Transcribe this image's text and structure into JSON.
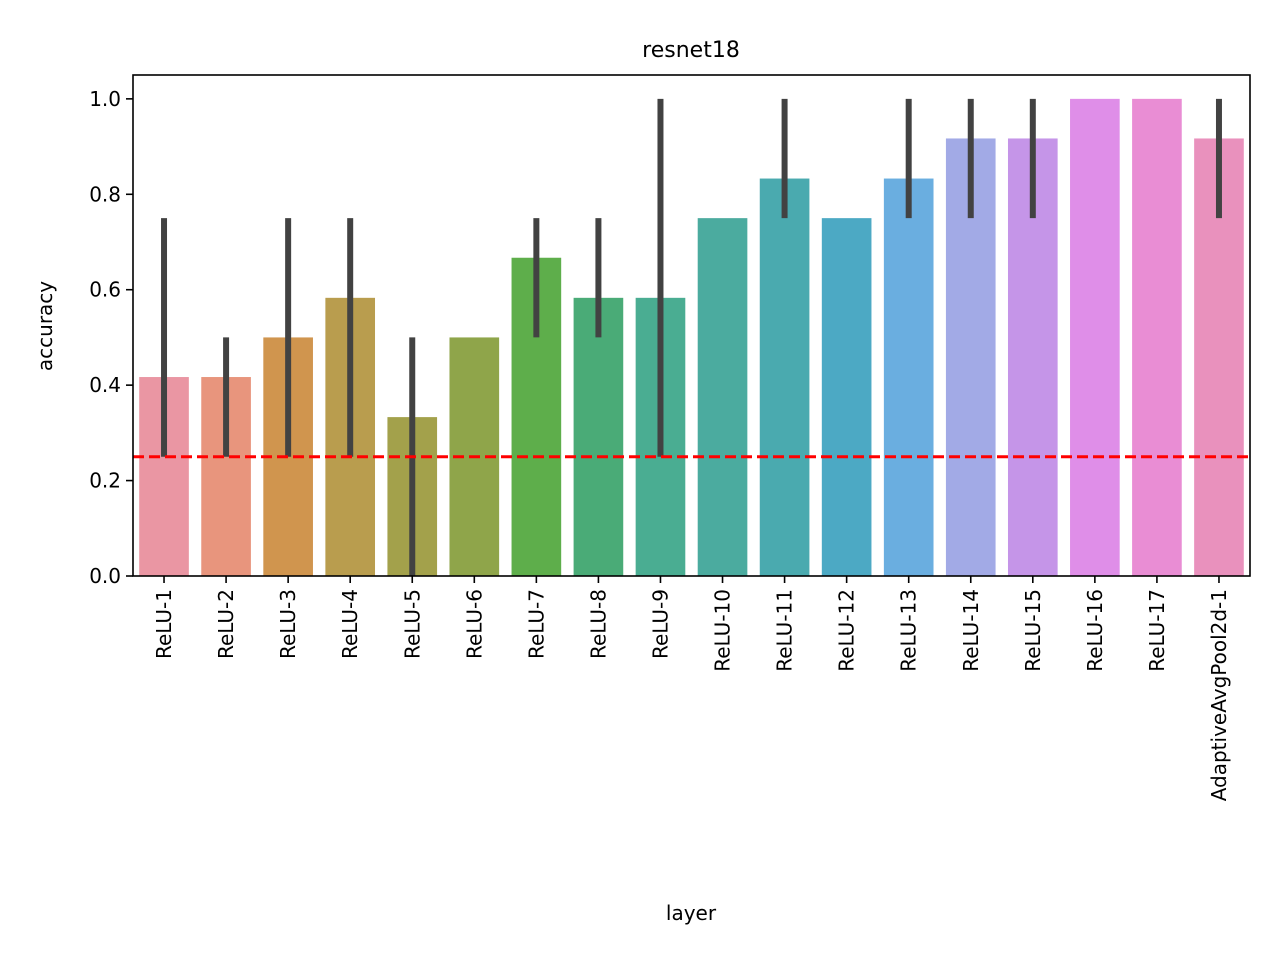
{
  "chart_data": {
    "type": "bar",
    "title": "resnet18",
    "xlabel": "layer",
    "ylabel": "accuracy",
    "ylim": [
      0,
      1.05
    ],
    "yticks": [
      0.0,
      0.2,
      0.4,
      0.6,
      0.8,
      1.0
    ],
    "ytick_labels": [
      "0.0",
      "0.2",
      "0.4",
      "0.6",
      "0.8",
      "1.0"
    ],
    "grid": false,
    "categories": [
      "ReLU-1",
      "ReLU-2",
      "ReLU-3",
      "ReLU-4",
      "ReLU-5",
      "ReLU-6",
      "ReLU-7",
      "ReLU-8",
      "ReLU-9",
      "ReLU-10",
      "ReLU-11",
      "ReLU-12",
      "ReLU-13",
      "ReLU-14",
      "ReLU-15",
      "ReLU-16",
      "ReLU-17",
      "AdaptiveAvgPool2d-1"
    ],
    "values": [
      0.417,
      0.417,
      0.5,
      0.583,
      0.333,
      0.5,
      0.667,
      0.583,
      0.583,
      0.75,
      0.833,
      0.75,
      0.833,
      0.917,
      0.917,
      1.0,
      1.0,
      0.917
    ],
    "error_bars": [
      [
        0.25,
        0.75
      ],
      [
        0.25,
        0.5
      ],
      [
        0.25,
        0.75
      ],
      [
        0.25,
        0.75
      ],
      [
        0.0,
        0.5
      ],
      null,
      [
        0.5,
        0.75
      ],
      [
        0.5,
        0.75
      ],
      [
        0.25,
        1.0
      ],
      null,
      [
        0.75,
        1.0
      ],
      null,
      [
        0.75,
        1.0
      ],
      [
        0.75,
        1.0
      ],
      [
        0.75,
        1.0
      ],
      null,
      null,
      [
        0.75,
        1.0
      ]
    ],
    "colors": [
      "#ea96a3",
      "#e8957d",
      "#d0954e",
      "#b99d4e",
      "#a3a14b",
      "#8fa54a",
      "#5eae4b",
      "#4aab77",
      "#4aad92",
      "#4bab9f",
      "#4aaaaf",
      "#4ca9c4",
      "#6aaee0",
      "#a2aae6",
      "#c595e8",
      "#df8ee8",
      "#e98dd4",
      "#e991bd"
    ],
    "reference_line": {
      "y": 0.25,
      "color": "#ff0000",
      "style": "dashed"
    }
  }
}
